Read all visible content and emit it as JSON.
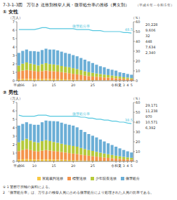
{
  "title": "7-3-1-3図　万引き 送致別検挙人員・微罪処分率の推移（男女別）",
  "subtitle": "（平成６年～令和５年）",
  "notes": [
    "①  1  警察庁所輔の資料による。",
    "   2  「微罪処分率」は、万引きの検挙人員に占める微罪処分により処理された人員の比率である。"
  ],
  "chart_data": [
    {
      "type": "bar",
      "stacked": true,
      "title": "① 女性",
      "y_label": "（万人）",
      "y2_label": "（％）",
      "categories": [
        "平成66",
        null,
        null,
        null,
        "10",
        null,
        null,
        null,
        null,
        "15",
        null,
        null,
        null,
        null,
        "20",
        null,
        null,
        null,
        null,
        "25",
        null,
        null,
        null,
        null,
        null,
        "令和元",
        "2",
        "3",
        "4",
        "5"
      ],
      "ylim": [
        0,
        7
      ],
      "yticks": [
        0,
        1,
        2,
        3,
        4,
        5,
        6,
        7
      ],
      "y2lim": [
        0,
        60
      ],
      "y2ticks": [
        0,
        10,
        20,
        30,
        40,
        50,
        60
      ],
      "grid": false,
      "legend": "bottom",
      "series": [
        {
          "name": "家庭裁判送致",
          "color": "#f7c843",
          "values": [
            0.18,
            0.2,
            0.22,
            0.22,
            0.2,
            0.18,
            0.19,
            0.21,
            0.2,
            0.19,
            0.18,
            0.17,
            0.16,
            0.14,
            0.12,
            0.11,
            0.1,
            0.09,
            0.08,
            0.07,
            0.06,
            0.06,
            0.05,
            0.05,
            0.05,
            0.04,
            0.04,
            0.03,
            0.03,
            0.02
          ]
        },
        {
          "name": "標聖送致",
          "color": "#f4934a",
          "values": [
            0.9,
            1.0,
            1.05,
            1.0,
            0.95,
            0.9,
            0.95,
            1.0,
            0.95,
            0.93,
            0.9,
            0.85,
            0.8,
            0.76,
            0.7,
            0.65,
            0.58,
            0.52,
            0.47,
            0.44,
            0.41,
            0.38,
            0.35,
            0.32,
            0.29,
            0.26,
            0.23,
            0.2,
            0.18,
            0.15
          ]
        },
        {
          "name": "少年院長送致",
          "color": "#b5ca3a",
          "values": [
            0.72,
            0.82,
            0.9,
            0.82,
            0.78,
            0.73,
            0.83,
            0.88,
            0.83,
            0.81,
            0.78,
            0.73,
            0.7,
            0.7,
            0.67,
            0.63,
            0.57,
            0.51,
            0.46,
            0.43,
            0.39,
            0.36,
            0.33,
            0.3,
            0.28,
            0.25,
            0.22,
            0.19,
            0.17,
            0.14
          ]
        },
        {
          "name": "微罪処分",
          "color": "#6baed6",
          "values": [
            1.5,
            1.52,
            1.53,
            1.48,
            1.58,
            1.64,
            1.67,
            1.71,
            1.72,
            1.77,
            1.74,
            1.7,
            1.64,
            1.6,
            1.55,
            1.51,
            1.45,
            1.38,
            1.29,
            1.16,
            1.04,
            0.92,
            0.87,
            0.73,
            0.68,
            0.65,
            0.51,
            0.5,
            0.42,
            0.4
          ]
        },
        {
          "name": "微罪処分率",
          "type": "line",
          "axis": "y2",
          "color": "#56c8e0",
          "values": [
            52,
            52,
            52,
            52,
            52,
            53,
            54,
            54,
            53,
            53,
            53,
            53,
            53,
            53,
            53,
            52,
            52,
            52,
            52,
            51,
            51,
            51,
            50,
            50,
            50,
            50,
            50,
            49,
            49,
            48.5
          ],
          "value_labels": [
            null,
            null,
            null,
            null,
            null,
            null,
            null,
            null,
            null,
            null,
            null,
            null,
            null,
            null,
            null,
            null,
            null,
            null,
            null,
            null,
            null,
            null,
            null,
            null,
            null,
            null,
            null,
            null,
            null,
            "48.5"
          ]
        }
      ],
      "annotations": [
        "20,228",
        "9,606",
        "32",
        "448",
        "7,634",
        "2,340"
      ]
    },
    {
      "type": "bar",
      "stacked": true,
      "title": "② 男性",
      "y_label": "（万人）",
      "y2_label": "（％）",
      "categories": [
        "平成66",
        null,
        null,
        null,
        "10",
        null,
        null,
        null,
        null,
        "15",
        null,
        null,
        null,
        null,
        "20",
        null,
        null,
        null,
        null,
        "25",
        null,
        null,
        null,
        null,
        null,
        "令和元",
        "2",
        "3",
        "4",
        "5"
      ],
      "ylim": [
        0,
        7
      ],
      "yticks": [
        0,
        1,
        2,
        3,
        4,
        5,
        6,
        7
      ],
      "y2lim": [
        0,
        60
      ],
      "y2ticks": [
        0,
        10,
        20,
        30,
        40,
        50,
        60
      ],
      "grid": false,
      "series": [
        {
          "color": "#f7c843",
          "values": [
            0.22,
            0.25,
            0.27,
            0.25,
            0.23,
            0.21,
            0.23,
            0.25,
            0.24,
            0.23,
            0.21,
            0.2,
            0.19,
            0.17,
            0.15,
            0.14,
            0.12,
            0.11,
            0.1,
            0.09,
            0.08,
            0.07,
            0.07,
            0.06,
            0.06,
            0.05,
            0.05,
            0.04,
            0.04,
            0.04
          ]
        },
        {
          "color": "#f4934a",
          "values": [
            1.0,
            1.1,
            1.2,
            1.1,
            1.0,
            0.97,
            1.05,
            1.1,
            1.05,
            1.0,
            0.97,
            0.92,
            0.87,
            0.82,
            0.78,
            0.75,
            0.68,
            0.63,
            0.58,
            0.54,
            0.49,
            0.44,
            0.4,
            0.36,
            0.32,
            0.28,
            0.25,
            0.22,
            0.19,
            0.17
          ]
        },
        {
          "color": "#b5ca3a",
          "values": [
            1.05,
            1.13,
            1.22,
            1.13,
            1.08,
            1.04,
            1.13,
            1.18,
            1.13,
            1.08,
            1.03,
            0.98,
            0.93,
            0.93,
            0.9,
            0.86,
            0.8,
            0.73,
            0.67,
            0.62,
            0.57,
            0.52,
            0.47,
            0.43,
            0.39,
            0.35,
            0.31,
            0.28,
            0.25,
            0.22
          ]
        },
        {
          "color": "#6baed6",
          "values": [
            1.98,
            1.97,
            1.96,
            1.97,
            2.04,
            2.13,
            2.24,
            2.32,
            2.38,
            2.47,
            2.54,
            2.5,
            2.46,
            2.43,
            2.42,
            2.3,
            2.15,
            2.02,
            1.9,
            1.8,
            1.71,
            1.57,
            1.43,
            1.3,
            1.18,
            1.07,
            0.94,
            0.82,
            0.72,
            0.63
          ]
        },
        {
          "name": "微罪処分率",
          "type": "line",
          "axis": "y2",
          "color": "#56c8e0",
          "values": [
            47,
            46,
            46,
            46,
            46,
            47,
            47,
            47,
            46,
            46,
            46,
            46,
            46,
            46,
            46,
            46,
            45,
            45,
            44,
            44,
            43,
            43,
            42,
            42,
            41,
            41,
            40,
            40,
            39,
            38.5
          ],
          "value_labels": [
            null,
            null,
            null,
            null,
            null,
            null,
            null,
            null,
            null,
            null,
            null,
            null,
            null,
            null,
            null,
            null,
            null,
            null,
            null,
            null,
            null,
            null,
            null,
            null,
            null,
            null,
            null,
            null,
            null,
            "38.5"
          ]
        }
      ],
      "annotations": [
        "29,171",
        "11,238",
        "970",
        "10,571",
        "6,392"
      ]
    }
  ]
}
